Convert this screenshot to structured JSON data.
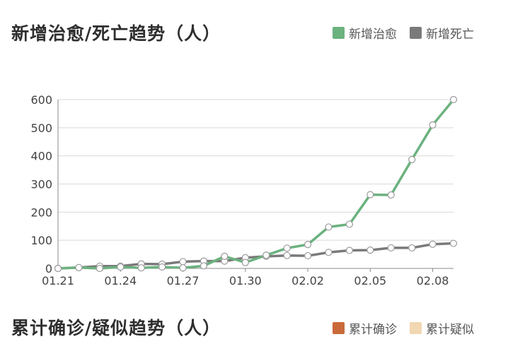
{
  "charts": [
    {
      "title": "新增治愈/死亡趋势（人）",
      "legend": [
        {
          "label": "新增治愈",
          "color": "#6bb27f"
        },
        {
          "label": "新增死亡",
          "color": "#7a7a7a"
        }
      ]
    },
    {
      "title": "累计确诊/疑似趋势（人）",
      "legend": [
        {
          "label": "累计确诊",
          "color": "#c96a3a"
        },
        {
          "label": "累计疑似",
          "color": "#f2d7b3"
        }
      ]
    }
  ],
  "chart_data": {
    "type": "line",
    "x": [
      "01.21",
      "01.22",
      "01.23",
      "01.24",
      "01.25",
      "01.26",
      "01.27",
      "01.28",
      "01.29",
      "01.30",
      "01.31",
      "02.01",
      "02.02",
      "02.03",
      "02.04",
      "02.05",
      "02.06",
      "02.07",
      "02.08",
      "02.09"
    ],
    "x_tick_labels": [
      "01.21",
      "01.24",
      "01.27",
      "01.30",
      "02.02",
      "02.05",
      "02.08"
    ],
    "y_ticks": [
      "0",
      "100",
      "200",
      "300",
      "400",
      "500",
      "600"
    ],
    "ylim": [
      0,
      600
    ],
    "grid": true,
    "legend_position": "top-right",
    "series": [
      {
        "name": "新增治愈",
        "color": "#6bb27f",
        "values": [
          0,
          3,
          0,
          5,
          2,
          5,
          2,
          9,
          43,
          21,
          47,
          72,
          85,
          147,
          157,
          262,
          261,
          387,
          510,
          600
        ]
      },
      {
        "name": "新增死亡",
        "color": "#7a7a7a",
        "values": [
          0,
          3,
          8,
          8,
          16,
          15,
          24,
          26,
          26,
          38,
          43,
          46,
          45,
          57,
          64,
          65,
          73,
          73,
          86,
          89
        ]
      }
    ]
  }
}
